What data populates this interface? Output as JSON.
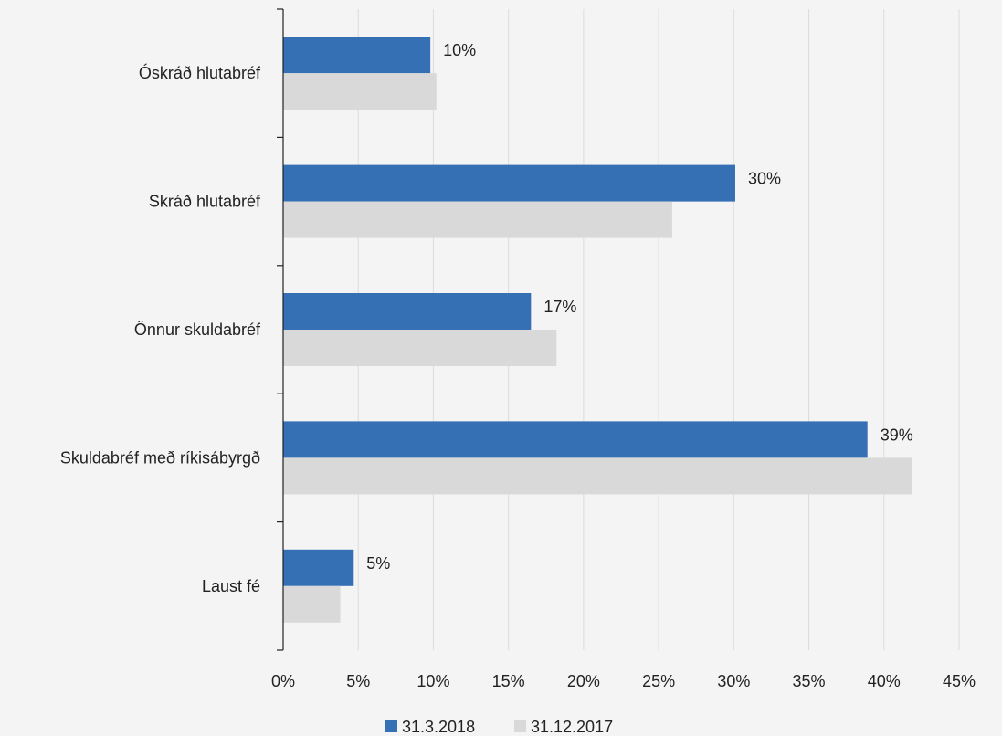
{
  "chart_data": {
    "type": "bar",
    "orientation": "horizontal",
    "categories": [
      "Óskráð hlutabréf",
      "Skráð hlutabréf",
      "Önnur skuldabréf",
      "Skuldabréf með ríkisábyrgð",
      "Laust fé"
    ],
    "series": [
      {
        "name": "31.3.2018",
        "color": "#3570b5",
        "values": [
          9.8,
          30.1,
          16.5,
          38.9,
          4.7
        ],
        "data_labels": [
          "10%",
          "30%",
          "17%",
          "39%",
          "5%"
        ]
      },
      {
        "name": "31.12.2017",
        "color": "#d9d9d9",
        "values": [
          10.2,
          25.9,
          18.2,
          41.9,
          3.8
        ]
      }
    ],
    "xlim": [
      0,
      45
    ],
    "x_ticks": [
      0,
      5,
      10,
      15,
      20,
      25,
      30,
      35,
      40,
      45
    ],
    "x_tick_labels": [
      "0%",
      "5%",
      "10%",
      "15%",
      "20%",
      "25%",
      "30%",
      "35%",
      "40%",
      "45%"
    ],
    "grid": "vertical",
    "legend_position": "bottom",
    "title": "",
    "xlabel": "",
    "ylabel": ""
  }
}
